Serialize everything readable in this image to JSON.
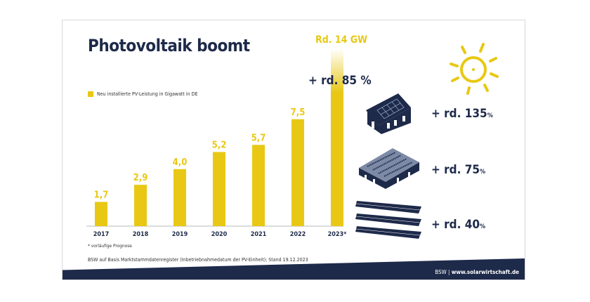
{
  "title": "Photovoltaik boomt",
  "chart_data": {
    "type": "bar",
    "categories": [
      "2017",
      "2018",
      "2019",
      "2020",
      "2021",
      "2022",
      "2023*"
    ],
    "values": [
      1.7,
      2.9,
      4.0,
      5.2,
      5.7,
      7.5,
      14
    ],
    "value_labels": [
      "1,7",
      "2,9",
      "4,0",
      "5,2",
      "5,7",
      "7,5",
      "Rd. 14 GW"
    ],
    "legend": "Neu installierte PV-Leistung in Gigawatt in DE",
    "color": "#e8c814",
    "annotation": "+ rd. 85 %"
  },
  "segments": [
    {
      "icon": "house-rooftop-pv-icon",
      "label": "+ rd. 135",
      "unit": "%"
    },
    {
      "icon": "commercial-roof-pv-icon",
      "label": "+ rd. 75",
      "unit": "%"
    },
    {
      "icon": "ground-mounted-pv-icon",
      "label": "+ rd. 40",
      "unit": "%"
    }
  ],
  "footnote": "* vorläufige Prognose",
  "source": "BSW auf Basis Marktstammdatenregister (Inbetriebnahmedatum der PV-Einheit); Stand 19.12.2023",
  "footer": {
    "org": "BSW |",
    "url": "www.solarwirtschaft.de"
  },
  "colors": {
    "navy": "#1e2a4a",
    "yellow": "#e8c814"
  }
}
